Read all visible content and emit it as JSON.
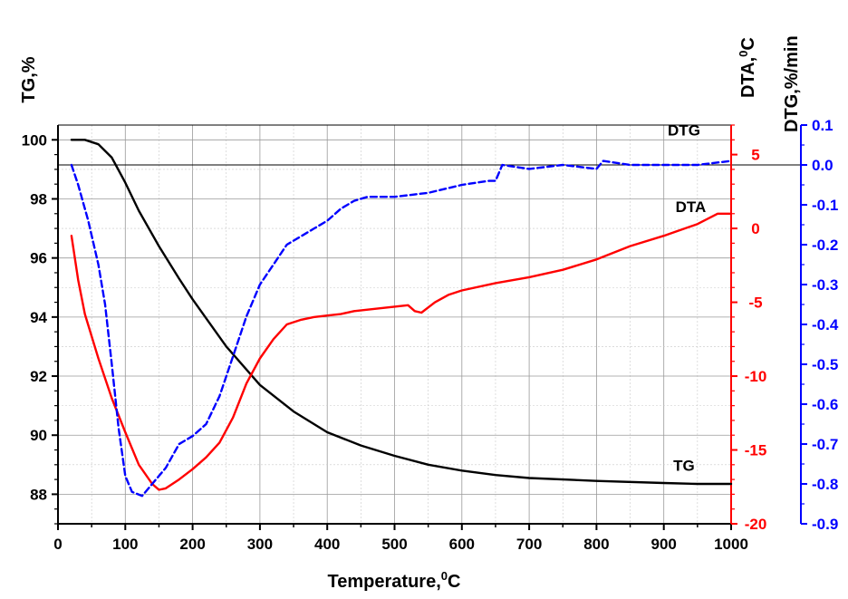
{
  "chart_data": {
    "type": "line",
    "xlabel": "Temperature,",
    "xlabel_sup": "0",
    "xlabel_tail": "C",
    "x_range": [
      0,
      1000
    ],
    "x_ticks": [
      0,
      100,
      200,
      300,
      400,
      500,
      600,
      700,
      800,
      900,
      1000
    ],
    "grid": true,
    "axes": {
      "tg": {
        "label": "TG,%",
        "range": [
          87,
          100.5
        ],
        "ticks": [
          88,
          90,
          92,
          94,
          96,
          98,
          100
        ],
        "color": "#000000",
        "side": "left"
      },
      "dta": {
        "label": "DTA,",
        "label_sup": "0",
        "label_tail": "C",
        "range": [
          -20,
          7
        ],
        "ticks": [
          -20,
          -15,
          -10,
          -5,
          0,
          5
        ],
        "color": "#ff0000",
        "side": "right"
      },
      "dtg": {
        "label": "DTG,%/min",
        "range": [
          -0.9,
          0.1
        ],
        "ticks": [
          -0.9,
          -0.8,
          -0.7,
          -0.6,
          -0.5,
          -0.4,
          -0.3,
          -0.2,
          -0.1,
          0.0,
          0.1
        ],
        "color": "#0000ff",
        "side": "right-outer"
      }
    },
    "reference_line": {
      "axis": "dtg",
      "value": 0.0
    },
    "series": [
      {
        "name": "TG",
        "axis": "tg",
        "color": "#000000",
        "style": "solid",
        "label_at": [
          930,
          88.8
        ],
        "points": [
          [
            20,
            100
          ],
          [
            40,
            100
          ],
          [
            60,
            99.85
          ],
          [
            80,
            99.4
          ],
          [
            100,
            98.55
          ],
          [
            120,
            97.6
          ],
          [
            150,
            96.4
          ],
          [
            180,
            95.3
          ],
          [
            200,
            94.6
          ],
          [
            250,
            93
          ],
          [
            300,
            91.7
          ],
          [
            350,
            90.8
          ],
          [
            400,
            90.1
          ],
          [
            450,
            89.65
          ],
          [
            500,
            89.3
          ],
          [
            550,
            89
          ],
          [
            600,
            88.8
          ],
          [
            650,
            88.65
          ],
          [
            700,
            88.55
          ],
          [
            800,
            88.45
          ],
          [
            900,
            88.38
          ],
          [
            950,
            88.35
          ],
          [
            1000,
            88.35
          ]
        ]
      },
      {
        "name": "DTA",
        "axis": "dta",
        "color": "#ff0000",
        "style": "solid",
        "label_at": [
          940,
          1.1
        ],
        "points": [
          [
            20,
            -0.5
          ],
          [
            30,
            -3.5
          ],
          [
            40,
            -5.8
          ],
          [
            60,
            -8.8
          ],
          [
            80,
            -11.5
          ],
          [
            100,
            -13.8
          ],
          [
            120,
            -16
          ],
          [
            140,
            -17.3
          ],
          [
            150,
            -17.7
          ],
          [
            160,
            -17.6
          ],
          [
            180,
            -17
          ],
          [
            200,
            -16.3
          ],
          [
            220,
            -15.5
          ],
          [
            240,
            -14.5
          ],
          [
            260,
            -12.8
          ],
          [
            280,
            -10.5
          ],
          [
            300,
            -8.8
          ],
          [
            320,
            -7.5
          ],
          [
            340,
            -6.5
          ],
          [
            360,
            -6.2
          ],
          [
            380,
            -6
          ],
          [
            400,
            -5.9
          ],
          [
            420,
            -5.8
          ],
          [
            440,
            -5.6
          ],
          [
            460,
            -5.5
          ],
          [
            480,
            -5.4
          ],
          [
            500,
            -5.3
          ],
          [
            520,
            -5.2
          ],
          [
            530,
            -5.6
          ],
          [
            540,
            -5.7
          ],
          [
            560,
            -5
          ],
          [
            580,
            -4.5
          ],
          [
            600,
            -4.2
          ],
          [
            650,
            -3.7
          ],
          [
            700,
            -3.3
          ],
          [
            750,
            -2.8
          ],
          [
            800,
            -2.1
          ],
          [
            850,
            -1.2
          ],
          [
            900,
            -0.5
          ],
          [
            950,
            0.3
          ],
          [
            980,
            1
          ],
          [
            1000,
            1
          ]
        ]
      },
      {
        "name": "DTG",
        "axis": "dtg",
        "color": "#0000ff",
        "style": "dashed",
        "label_at": [
          930,
          0.074
        ],
        "points": [
          [
            20,
            0
          ],
          [
            30,
            -0.05
          ],
          [
            45,
            -0.14
          ],
          [
            60,
            -0.25
          ],
          [
            70,
            -0.35
          ],
          [
            80,
            -0.5
          ],
          [
            90,
            -0.66
          ],
          [
            100,
            -0.78
          ],
          [
            110,
            -0.82
          ],
          [
            125,
            -0.83
          ],
          [
            140,
            -0.8
          ],
          [
            160,
            -0.76
          ],
          [
            180,
            -0.7
          ],
          [
            200,
            -0.68
          ],
          [
            220,
            -0.65
          ],
          [
            240,
            -0.58
          ],
          [
            260,
            -0.48
          ],
          [
            280,
            -0.38
          ],
          [
            300,
            -0.3
          ],
          [
            320,
            -0.25
          ],
          [
            340,
            -0.2
          ],
          [
            360,
            -0.18
          ],
          [
            380,
            -0.16
          ],
          [
            400,
            -0.14
          ],
          [
            420,
            -0.11
          ],
          [
            440,
            -0.09
          ],
          [
            460,
            -0.08
          ],
          [
            500,
            -0.08
          ],
          [
            550,
            -0.07
          ],
          [
            600,
            -0.05
          ],
          [
            640,
            -0.04
          ],
          [
            650,
            -0.04
          ],
          [
            660,
            0
          ],
          [
            700,
            -0.01
          ],
          [
            750,
            0
          ],
          [
            800,
            -0.01
          ],
          [
            810,
            0.01
          ],
          [
            850,
            0
          ],
          [
            900,
            0
          ],
          [
            950,
            0
          ],
          [
            1000,
            0.01
          ]
        ]
      }
    ]
  }
}
